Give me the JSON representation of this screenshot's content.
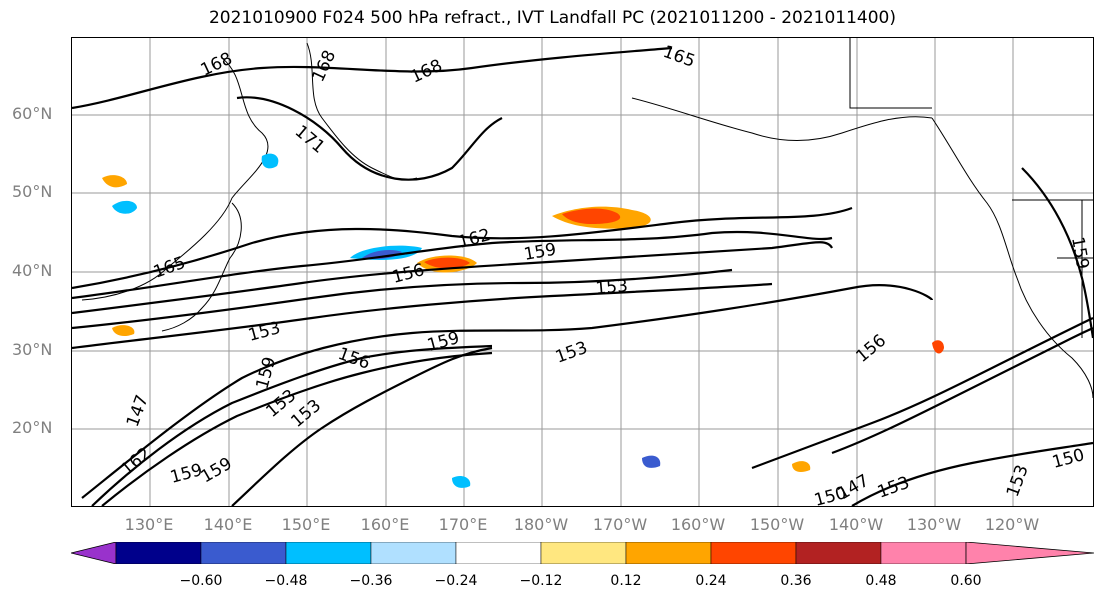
{
  "title": "2021010900 F024 500 hPa refract., IVT Landfall PC (2021011200 - 2021011400)",
  "lat_labels": [
    "60°N",
    "50°N",
    "40°N",
    "30°N",
    "20°N"
  ],
  "lon_labels": [
    "130°E",
    "140°E",
    "150°E",
    "160°E",
    "170°E",
    "180°W",
    "170°W",
    "160°W",
    "150°W",
    "140°W",
    "130°W",
    "120°W"
  ],
  "colorbar": {
    "colors": [
      "#9932cc",
      "#00008b",
      "#3a5bcf",
      "#00bfff",
      "#b0e0ff",
      "#ffffff",
      "#ffe780",
      "#ffa500",
      "#ff4500",
      "#b22222",
      "#ff82ab"
    ],
    "ticks": [
      "−0.60",
      "−0.48",
      "−0.36",
      "−0.24",
      "−0.12",
      "0.12",
      "0.24",
      "0.36",
      "0.48",
      "0.60"
    ]
  },
  "contour_labels": [
    "168",
    "168",
    "168",
    "165",
    "171",
    "165",
    "162",
    "159",
    "156",
    "153",
    "153",
    "153",
    "156",
    "156",
    "159",
    "159",
    "159",
    "153",
    "153",
    "147",
    "162",
    "159",
    "150",
    "147",
    "153",
    "150",
    "153",
    "159"
  ],
  "colors": {
    "contour": "#000000",
    "grid": "#808080",
    "axis_text": "#808080"
  }
}
